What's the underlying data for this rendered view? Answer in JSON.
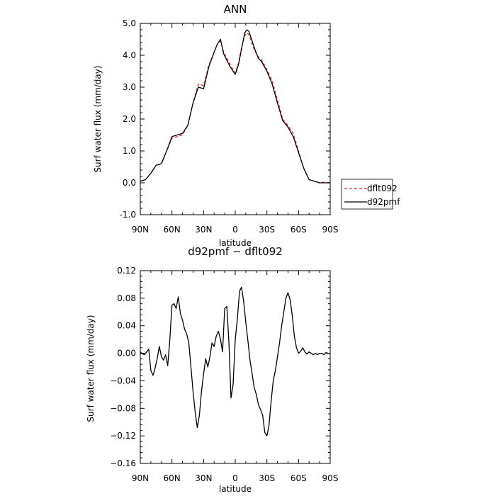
{
  "chart_data": [
    {
      "type": "line",
      "title": "ANN",
      "xlabel": "latitude",
      "ylabel": "Surf water flux (mm/day)",
      "x_tick_labels": [
        "90N",
        "60N",
        "30N",
        "0",
        "30S",
        "60S",
        "90S"
      ],
      "x_tick_values": [
        90,
        60,
        30,
        0,
        -30,
        -60,
        -90
      ],
      "xlim": [
        90,
        -90
      ],
      "y_tick_labels": [
        "-1.0",
        "0.0",
        "1.0",
        "2.0",
        "3.0",
        "4.0",
        "5.0"
      ],
      "y_tick_values": [
        -1,
        0,
        1,
        2,
        3,
        4,
        5
      ],
      "ylim": [
        -1,
        5
      ],
      "legend": {
        "position": "right",
        "entries": [
          "dflt092",
          "d92pmf"
        ]
      },
      "series": [
        {
          "name": "dflt092",
          "color": "#e8262a",
          "dash": "dashed",
          "x": [
            90,
            85,
            80,
            75,
            70,
            65,
            60,
            55,
            50,
            45,
            40,
            35,
            30,
            25,
            20,
            17,
            14,
            11,
            8,
            5,
            2,
            0,
            -3,
            -6,
            -9,
            -11,
            -13,
            -16,
            -19,
            -22,
            -25,
            -30,
            -35,
            -40,
            -45,
            -50,
            -55,
            -60,
            -65,
            -70,
            -75,
            -80,
            -85,
            -90
          ],
          "y": [
            0.05,
            0.1,
            0.3,
            0.55,
            0.6,
            1.0,
            1.4,
            1.45,
            1.5,
            1.8,
            2.5,
            3.1,
            3.05,
            3.7,
            4.1,
            4.35,
            4.45,
            4.1,
            3.9,
            3.72,
            3.55,
            3.45,
            3.75,
            4.25,
            4.62,
            4.7,
            4.65,
            4.35,
            4.1,
            3.95,
            3.85,
            3.55,
            3.2,
            2.6,
            2.0,
            1.8,
            1.55,
            1.0,
            0.45,
            0.1,
            0.05,
            0.0,
            0.02,
            0.0
          ]
        },
        {
          "name": "d92pmf",
          "color": "#000000",
          "dash": "solid",
          "x": [
            90,
            85,
            80,
            75,
            70,
            65,
            60,
            55,
            50,
            45,
            40,
            35,
            30,
            25,
            20,
            17,
            14,
            11,
            8,
            5,
            2,
            0,
            -3,
            -6,
            -9,
            -11,
            -13,
            -16,
            -19,
            -22,
            -25,
            -30,
            -35,
            -40,
            -45,
            -50,
            -55,
            -60,
            -65,
            -70,
            -75,
            -80,
            -85,
            -90
          ],
          "y": [
            0.05,
            0.1,
            0.3,
            0.55,
            0.6,
            1.0,
            1.45,
            1.5,
            1.55,
            1.8,
            2.5,
            3.0,
            2.95,
            3.65,
            4.1,
            4.35,
            4.5,
            4.05,
            3.85,
            3.65,
            3.5,
            3.4,
            3.7,
            4.2,
            4.7,
            4.8,
            4.75,
            4.45,
            4.15,
            3.9,
            3.8,
            3.5,
            3.1,
            2.5,
            1.95,
            1.75,
            1.45,
            0.95,
            0.45,
            0.1,
            0.05,
            0.0,
            0.0,
            0.0
          ]
        }
      ]
    },
    {
      "type": "line",
      "title": "d92pmf − dflt092",
      "xlabel": "latitude",
      "ylabel": "Surf water flux (mm/day)",
      "x_tick_labels": [
        "90N",
        "60N",
        "30N",
        "0",
        "30S",
        "60S",
        "90S"
      ],
      "x_tick_values": [
        90,
        60,
        30,
        0,
        -30,
        -60,
        -90
      ],
      "xlim": [
        90,
        -90
      ],
      "y_tick_labels": [
        "−0.16",
        "−0.12",
        "−0.08",
        "−0.04",
        "0.00",
        "0.04",
        "0.08",
        "0.12"
      ],
      "y_tick_values": [
        -0.16,
        -0.12,
        -0.08,
        -0.04,
        0.0,
        0.04,
        0.08,
        0.12
      ],
      "ylim": [
        -0.16,
        0.12
      ],
      "series": [
        {
          "color": "#000000",
          "dash": "solid",
          "x": [
            90,
            88,
            86,
            84,
            82,
            80,
            78,
            76,
            74,
            72,
            70,
            68,
            66,
            64,
            62,
            60,
            58,
            56,
            54,
            52,
            50,
            48,
            46,
            44,
            42,
            40,
            38,
            36,
            34,
            32,
            30,
            28,
            26,
            24,
            22,
            20,
            18,
            16,
            14,
            12,
            10,
            8,
            6,
            4,
            2,
            0,
            -2,
            -4,
            -6,
            -8,
            -10,
            -12,
            -14,
            -16,
            -18,
            -20,
            -22,
            -24,
            -26,
            -28,
            -30,
            -32,
            -34,
            -36,
            -38,
            -40,
            -42,
            -44,
            -46,
            -48,
            -50,
            -52,
            -54,
            -56,
            -58,
            -60,
            -62,
            -64,
            -66,
            -68,
            -70,
            -72,
            -74,
            -76,
            -78,
            -80,
            -82,
            -84,
            -86,
            -88,
            -90
          ],
          "y": [
            0.002,
            -0.001,
            -0.002,
            0.002,
            0.006,
            -0.025,
            -0.032,
            -0.022,
            -0.008,
            0.01,
            -0.005,
            -0.01,
            -0.002,
            -0.018,
            0.02,
            0.07,
            0.072,
            0.065,
            0.082,
            0.058,
            0.048,
            0.035,
            0.028,
            0.015,
            -0.02,
            -0.055,
            -0.085,
            -0.108,
            -0.09,
            -0.055,
            -0.03,
            -0.008,
            -0.02,
            -0.005,
            0.015,
            0.01,
            0.025,
            0.032,
            0.02,
            0.002,
            0.065,
            0.068,
            0.015,
            -0.065,
            -0.045,
            0.02,
            0.05,
            0.09,
            0.096,
            0.075,
            0.045,
            0.018,
            -0.01,
            -0.03,
            -0.05,
            -0.06,
            -0.075,
            -0.082,
            -0.09,
            -0.115,
            -0.12,
            -0.105,
            -0.07,
            -0.04,
            -0.025,
            -0.005,
            0.015,
            0.04,
            0.06,
            0.08,
            0.088,
            0.078,
            0.055,
            0.025,
            0.008,
            0.0,
            0.003,
            0.008,
            0.002,
            -0.001,
            0.002,
            0.0,
            -0.002,
            0.0,
            -0.002,
            0.0,
            0.0,
            -0.002,
            0.001,
            0.0,
            0.0
          ]
        }
      ]
    }
  ]
}
